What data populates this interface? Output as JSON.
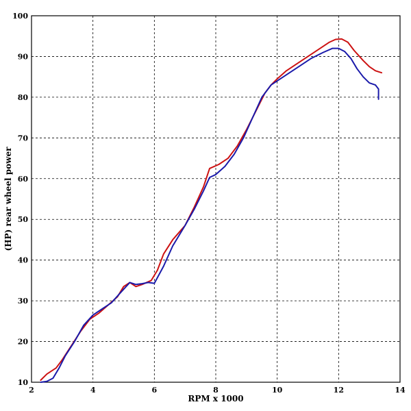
{
  "chart_data": {
    "type": "line",
    "title": "",
    "xlabel": "RPM x 1000",
    "ylabel": "(HP) rear wheel power",
    "xlim": [
      2,
      14
    ],
    "ylim": [
      10,
      100
    ],
    "xticks": [
      2,
      4,
      6,
      8,
      10,
      12,
      14
    ],
    "yticks": [
      10,
      20,
      30,
      40,
      50,
      60,
      70,
      80,
      90,
      100
    ],
    "grid": true,
    "legend": "none",
    "series": [
      {
        "color": "#cc1111",
        "x": [
          2.3,
          2.5,
          2.8,
          3.0,
          3.3,
          3.6,
          3.9,
          4.2,
          4.5,
          4.8,
          5.0,
          5.2,
          5.4,
          5.6,
          5.9,
          6.1,
          6.3,
          6.6,
          7.0,
          7.3,
          7.6,
          7.8,
          8.1,
          8.4,
          8.7,
          9.0,
          9.3,
          9.6,
          9.8,
          10.0,
          10.3,
          10.6,
          11.0,
          11.4,
          11.7,
          11.9,
          12.1,
          12.3,
          12.5,
          12.8,
          13.0,
          13.2,
          13.4
        ],
        "y": [
          10.5,
          12,
          13.5,
          15.5,
          19,
          22.5,
          25.5,
          27,
          29,
          31,
          33.5,
          34.5,
          33.5,
          34,
          35,
          37.5,
          41.5,
          45,
          48.5,
          53,
          58,
          62.5,
          63.5,
          65,
          68,
          72,
          76.5,
          81,
          83,
          84.5,
          86.5,
          88,
          90,
          92,
          93.5,
          94.2,
          94.3,
          93.5,
          91.5,
          89,
          87.5,
          86.5,
          86
        ]
      },
      {
        "color": "#1a1aaa",
        "x": [
          2.3,
          2.5,
          2.7,
          2.9,
          3.1,
          3.4,
          3.7,
          4.0,
          4.3,
          4.6,
          4.9,
          5.2,
          5.4,
          5.6,
          5.8,
          6.0,
          6.3,
          6.6,
          7.0,
          7.3,
          7.6,
          7.8,
          8.0,
          8.3,
          8.6,
          8.9,
          9.2,
          9.5,
          9.8,
          10.0,
          10.3,
          10.7,
          11.1,
          11.5,
          11.8,
          12.0,
          12.2,
          12.4,
          12.6,
          12.8,
          13.0,
          13.2,
          13.3,
          13.3
        ],
        "y": [
          10,
          10.2,
          11,
          13.5,
          16.5,
          20,
          24,
          26.5,
          28,
          29.5,
          32,
          34.5,
          34,
          34.2,
          34.5,
          34.3,
          38.5,
          43.5,
          48.5,
          52.5,
          57,
          60.3,
          61,
          63,
          66,
          70,
          75,
          80,
          83,
          84,
          85.5,
          87.5,
          89.5,
          91,
          92,
          92,
          91.2,
          89.5,
          87,
          85,
          83.5,
          83,
          82,
          79.5
        ]
      }
    ]
  }
}
